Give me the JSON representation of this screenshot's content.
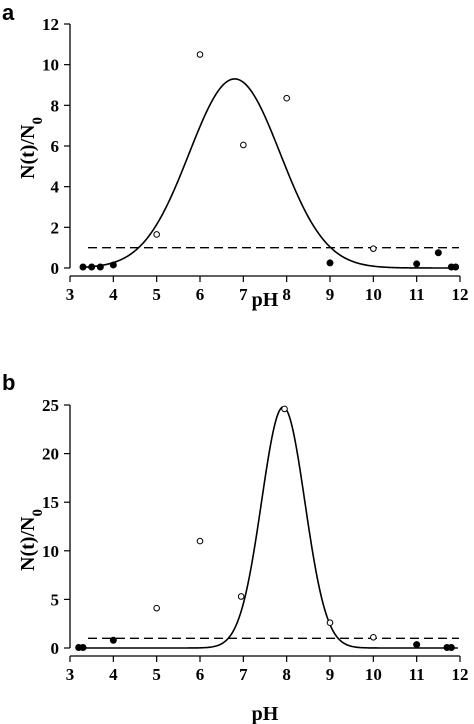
{
  "chart_data": [
    {
      "type": "scatter",
      "panel_label": "a",
      "xlabel": "pH",
      "ylabel": {
        "main": "N(t)/N",
        "sub": "0"
      },
      "xlim": [
        3,
        12
      ],
      "ylim": [
        0,
        12
      ],
      "xticks": [
        3,
        4,
        5,
        6,
        7,
        8,
        9,
        10,
        11,
        12
      ],
      "yticks": [
        0,
        2,
        4,
        6,
        8,
        10,
        12
      ],
      "reference_line": {
        "y": 1,
        "style": "dashed"
      },
      "fit_curve": {
        "kind": "gaussian",
        "amplitude": 9.3,
        "mean": 6.8,
        "sd": 1.05
      },
      "series": [
        {
          "marker": "open-circle",
          "points": [
            [
              5,
              1.65
            ],
            [
              6,
              10.5
            ],
            [
              7,
              6.05
            ],
            [
              8,
              8.35
            ],
            [
              10,
              0.95
            ]
          ]
        },
        {
          "marker": "filled-circle",
          "points": [
            [
              3.3,
              0.05
            ],
            [
              3.5,
              0.05
            ],
            [
              3.7,
              0.05
            ],
            [
              4,
              0.15
            ],
            [
              9,
              0.25
            ],
            [
              11,
              0.2
            ],
            [
              11.5,
              0.75
            ],
            [
              11.8,
              0.05
            ],
            [
              11.9,
              0.05
            ]
          ]
        }
      ]
    },
    {
      "type": "scatter",
      "panel_label": "b",
      "xlabel": "pH",
      "ylabel": {
        "main": "N(t)/N",
        "sub": "0"
      },
      "xlim": [
        3,
        12
      ],
      "ylim": [
        0,
        25
      ],
      "xticks": [
        3,
        4,
        5,
        6,
        7,
        8,
        9,
        10,
        11,
        12
      ],
      "yticks": [
        0,
        5,
        10,
        15,
        20,
        25
      ],
      "reference_line": {
        "y": 1,
        "style": "dashed"
      },
      "fit_curve": {
        "kind": "gaussian",
        "amplitude": 24.8,
        "mean": 7.92,
        "sd": 0.5
      },
      "series": [
        {
          "marker": "open-circle",
          "points": [
            [
              5,
              4.1
            ],
            [
              6,
              11.0
            ],
            [
              6.95,
              5.3
            ],
            [
              7.95,
              24.6
            ],
            [
              9,
              2.6
            ],
            [
              10,
              1.1
            ]
          ]
        },
        {
          "marker": "filled-circle",
          "points": [
            [
              3.2,
              0.05
            ],
            [
              3.3,
              0.05
            ],
            [
              4,
              0.8
            ],
            [
              11,
              0.35
            ],
            [
              11.7,
              0.05
            ],
            [
              11.8,
              0.05
            ]
          ]
        }
      ]
    }
  ]
}
